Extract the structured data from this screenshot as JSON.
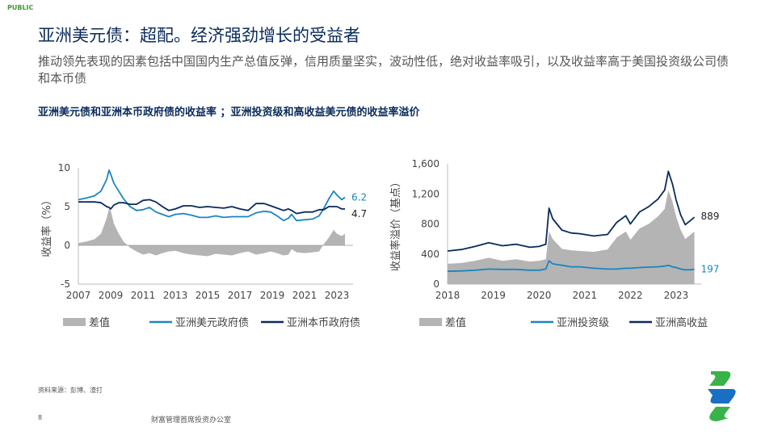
{
  "header": {
    "classification": "PUBLIC",
    "title": "亚洲美元债：超配。经济强劲增长的受益者",
    "subtitle": "推动领先表现的因素包括中国国内生产总值反弹，信用质量坚实，波动性低，绝对收益率吸引，以及收益率高于美国投资级公司债和本币债",
    "charts_title": "亚洲美元债和亚洲本币政府债的收益率 ；亚洲投资级和高收益美元债的收益率溢价"
  },
  "footer": {
    "source": "资料来源：彭博、渣打",
    "page_number": "8",
    "office": "财富管理首席投资办公室"
  },
  "colors": {
    "navy": "#0a2a5c",
    "teal": "#1a86c0",
    "grey_area": "#b4b4b4",
    "brand_green": "#38b349",
    "brand_blue": "#1a6fc4"
  },
  "logo": {
    "icon": "standard-chartered-logo"
  },
  "chart_data": [
    {
      "type": "line",
      "ylabel": "收益率（%）",
      "ylim": [
        -5,
        10
      ],
      "yticks": [
        "-5",
        "0",
        "5",
        "10"
      ],
      "xlim": [
        2007,
        2024
      ],
      "xticks": [
        "2007",
        "2009",
        "2011",
        "2013",
        "2015",
        "2017",
        "2019",
        "2021",
        "2023"
      ],
      "xticks_values": [
        2007,
        2009,
        2011,
        2013,
        2015,
        2017,
        2019,
        2021,
        2023
      ],
      "grid": false,
      "legend_position": "bottom",
      "x": [
        2007.0,
        2007.5,
        2008.0,
        2008.4,
        2008.75,
        2008.9,
        2009.0,
        2009.2,
        2009.5,
        2009.8,
        2010.2,
        2010.6,
        2011.0,
        2011.4,
        2011.8,
        2012.2,
        2012.6,
        2013.0,
        2013.5,
        2014.0,
        2014.5,
        2015.0,
        2015.5,
        2016.0,
        2016.5,
        2017.0,
        2017.5,
        2018.0,
        2018.5,
        2018.9,
        2019.3,
        2019.7,
        2020.0,
        2020.2,
        2020.5,
        2021.0,
        2021.5,
        2021.9,
        2022.2,
        2022.5,
        2022.8,
        2023.0,
        2023.3,
        2023.5
      ],
      "series": [
        {
          "name": "差值",
          "color": "#b4b4b4",
          "values": [
            0.3,
            0.5,
            0.8,
            1.5,
            3.5,
            4.8,
            4.5,
            2.8,
            1.5,
            0.5,
            -0.3,
            -0.8,
            -1.2,
            -1.0,
            -1.3,
            -1.0,
            -0.8,
            -0.7,
            -1.0,
            -1.2,
            -1.3,
            -1.4,
            -1.1,
            -1.2,
            -1.3,
            -1.0,
            -0.8,
            -1.2,
            -1.0,
            -0.8,
            -1.0,
            -1.3,
            -1.2,
            -0.5,
            -0.9,
            -1.0,
            -0.9,
            -0.8,
            0.2,
            1.0,
            2.0,
            1.5,
            1.2,
            1.5
          ]
        },
        {
          "name": "亚洲美元政府债",
          "color": "#1a86c0",
          "values": [
            5.9,
            6.1,
            6.4,
            7.0,
            8.5,
            9.7,
            9.2,
            8.0,
            7.0,
            6.0,
            5.0,
            4.5,
            4.6,
            4.9,
            4.3,
            4.0,
            3.7,
            4.0,
            4.1,
            3.9,
            3.6,
            3.6,
            3.8,
            3.6,
            3.7,
            3.7,
            3.7,
            4.2,
            4.4,
            4.3,
            3.8,
            3.2,
            3.5,
            4.0,
            3.2,
            3.3,
            3.4,
            3.8,
            4.8,
            6.0,
            7.0,
            6.5,
            5.9,
            6.2
          ]
        },
        {
          "name": "亚洲本币政府债",
          "color": "#0a2a5c",
          "values": [
            5.6,
            5.6,
            5.6,
            5.5,
            5.0,
            4.9,
            4.7,
            5.2,
            5.5,
            5.5,
            5.3,
            5.3,
            5.8,
            5.9,
            5.6,
            5.0,
            4.5,
            4.7,
            5.1,
            5.1,
            4.9,
            5.0,
            4.9,
            4.8,
            5.0,
            4.7,
            4.5,
            5.4,
            5.4,
            5.1,
            4.8,
            4.5,
            4.7,
            4.5,
            4.1,
            4.3,
            4.3,
            4.6,
            4.6,
            5.0,
            5.0,
            5.0,
            4.7,
            4.7
          ]
        }
      ],
      "end_labels": [
        {
          "text": "6.2",
          "series": 1,
          "color": "#1a86c0"
        },
        {
          "text": "4.7",
          "series": 2,
          "color": "#222222"
        }
      ]
    },
    {
      "type": "line",
      "ylabel": "收益率溢价（基点）",
      "ylim": [
        0,
        1600
      ],
      "yticks": [
        "0",
        "400",
        "800",
        "1,200",
        "1,600"
      ],
      "xlim": [
        2018,
        2023.55
      ],
      "xticks": [
        "2018",
        "2019",
        "2020",
        "2021",
        "2022",
        "2023"
      ],
      "xticks_values": [
        2018,
        2019,
        2020,
        2021,
        2022,
        2023
      ],
      "grid": false,
      "legend_position": "bottom",
      "x": [
        2018.0,
        2018.3,
        2018.6,
        2018.9,
        2019.2,
        2019.5,
        2019.8,
        2020.0,
        2020.15,
        2020.22,
        2020.3,
        2020.5,
        2020.7,
        2020.9,
        2021.2,
        2021.5,
        2021.7,
        2021.9,
        2022.0,
        2022.2,
        2022.4,
        2022.6,
        2022.75,
        2022.83,
        2022.92,
        2023.0,
        2023.1,
        2023.2,
        2023.3,
        2023.4
      ],
      "series": [
        {
          "name": "差值",
          "color": "#b4b4b4",
          "values": [
            270,
            280,
            310,
            350,
            310,
            330,
            300,
            310,
            330,
            700,
            600,
            470,
            450,
            440,
            430,
            460,
            620,
            700,
            590,
            740,
            800,
            900,
            1000,
            1250,
            1100,
            900,
            720,
            600,
            650,
            700
          ]
        },
        {
          "name": "亚洲投资级",
          "color": "#1a86c0",
          "values": [
            170,
            175,
            185,
            200,
            195,
            195,
            185,
            185,
            200,
            310,
            270,
            250,
            230,
            230,
            210,
            200,
            200,
            210,
            210,
            220,
            225,
            230,
            240,
            250,
            230,
            220,
            200,
            190,
            190,
            197
          ]
        },
        {
          "name": "亚洲高收益",
          "color": "#0a2a5c",
          "values": [
            440,
            460,
            500,
            550,
            510,
            530,
            490,
            500,
            530,
            1010,
            870,
            720,
            680,
            670,
            640,
            660,
            820,
            910,
            800,
            960,
            1030,
            1130,
            1250,
            1500,
            1330,
            1120,
            920,
            790,
            840,
            889
          ]
        }
      ],
      "end_labels": [
        {
          "text": "889",
          "series": 2,
          "color": "#222222"
        },
        {
          "text": "197",
          "series": 1,
          "color": "#1a86c0"
        }
      ]
    }
  ]
}
